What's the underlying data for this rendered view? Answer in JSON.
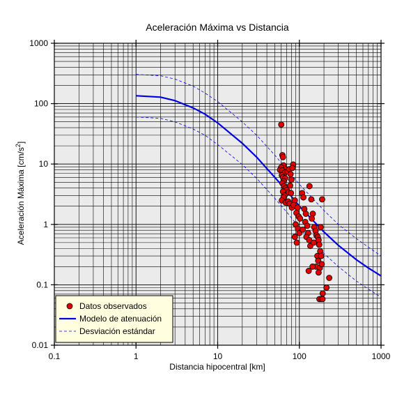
{
  "chart_data": {
    "type": "scatter",
    "title": "Aceleración Máxima vs Distancia",
    "xlabel": "Distancia hipocentral [km]",
    "ylabel": "Aceleración Máxima [cm/s²]",
    "ylabel_main": "Aceleración Máxima [cm/s",
    "ylabel_sup": "2",
    "ylabel_end": "]",
    "xscale": "log",
    "yscale": "log",
    "xlim": [
      0.1,
      1000
    ],
    "ylim": [
      0.01,
      1000
    ],
    "grid": true,
    "background": "#ebebeb",
    "x_ticks": [
      {
        "value": 0.1,
        "label": "0.1"
      },
      {
        "value": 1,
        "label": "1"
      },
      {
        "value": 10,
        "label": "10"
      },
      {
        "value": 100,
        "label": "100"
      },
      {
        "value": 1000,
        "label": "1000"
      }
    ],
    "y_ticks": [
      {
        "value": 0.01,
        "label": "0.01"
      },
      {
        "value": 0.1,
        "label": "0.1"
      },
      {
        "value": 1,
        "label": "1"
      },
      {
        "value": 10,
        "label": "10"
      },
      {
        "value": 100,
        "label": "100"
      },
      {
        "value": 1000,
        "label": "1000"
      }
    ],
    "legend": {
      "placement": "bottom-left",
      "background": "#ffffe0",
      "entries": [
        {
          "label": "Datos observados",
          "marker": "circle",
          "color": "#e00000"
        },
        {
          "label": "Modelo de atenuación",
          "marker": "line",
          "color": "#0000e0"
        },
        {
          "label": "Desviación estándar",
          "marker": "dashed",
          "color": "#0000e0"
        }
      ]
    },
    "series": [
      {
        "name": "Datos observados",
        "kind": "scatter",
        "color": "#e00000",
        "points": [
          [
            60,
            45
          ],
          [
            62,
            14
          ],
          [
            63,
            13
          ],
          [
            64,
            9.5
          ],
          [
            65,
            8.5
          ],
          [
            60,
            8.8
          ],
          [
            58,
            8.0
          ],
          [
            62,
            7.8
          ],
          [
            66,
            7.2
          ],
          [
            61,
            6.5
          ],
          [
            63,
            6.0
          ],
          [
            67,
            5.8
          ],
          [
            64,
            5.2
          ],
          [
            62,
            4.8
          ],
          [
            65,
            4.3
          ],
          [
            68,
            4.0
          ],
          [
            70,
            3.7
          ],
          [
            63,
            3.5
          ],
          [
            66,
            3.0
          ],
          [
            64,
            2.8
          ],
          [
            61,
            2.5
          ],
          [
            68,
            2.3
          ],
          [
            72,
            7.5
          ],
          [
            75,
            8.2
          ],
          [
            78,
            6.8
          ],
          [
            80,
            5.5
          ],
          [
            84,
            9.8
          ],
          [
            82,
            8.6
          ],
          [
            77,
            4.4
          ],
          [
            74,
            3.4
          ],
          [
            79,
            3.3
          ],
          [
            73,
            2.4
          ],
          [
            76,
            2.2
          ],
          [
            81,
            1.9
          ],
          [
            88,
            2.5
          ],
          [
            85,
            2.1
          ],
          [
            95,
            1.9
          ],
          [
            92,
            1.55
          ],
          [
            98,
            1.35
          ],
          [
            102,
            1.25
          ],
          [
            90,
            1.0
          ],
          [
            96,
            0.85
          ],
          [
            100,
            0.72
          ],
          [
            88,
            0.62
          ],
          [
            93,
            0.5
          ],
          [
            108,
            3.3
          ],
          [
            112,
            2.8
          ],
          [
            115,
            1.8
          ],
          [
            120,
            1.5
          ],
          [
            118,
            1.1
          ],
          [
            125,
            0.95
          ],
          [
            110,
            0.82
          ],
          [
            128,
            0.72
          ],
          [
            122,
            0.62
          ],
          [
            132,
            0.55
          ],
          [
            136,
            0.44
          ],
          [
            133,
            4.3
          ],
          [
            140,
            2.6
          ],
          [
            146,
            1.5
          ],
          [
            142,
            1.25
          ],
          [
            152,
            0.9
          ],
          [
            158,
            0.78
          ],
          [
            162,
            0.66
          ],
          [
            168,
            0.62
          ],
          [
            150,
            0.5
          ],
          [
            172,
            0.55
          ],
          [
            175,
            0.46
          ],
          [
            180,
            0.36
          ],
          [
            166,
            0.3
          ],
          [
            185,
            0.3
          ],
          [
            170,
            0.25
          ],
          [
            160,
            0.2
          ],
          [
            178,
            0.19
          ],
          [
            172,
            0.16
          ],
          [
            188,
            0.22
          ],
          [
            145,
            0.2
          ],
          [
            130,
            0.17
          ],
          [
            190,
            2.6
          ],
          [
            182,
            0.9
          ],
          [
            176,
            0.058
          ],
          [
            185,
            0.058
          ],
          [
            192,
            0.058
          ],
          [
            215,
            0.09
          ],
          [
            232,
            0.13
          ],
          [
            193,
            0.072
          ]
        ]
      },
      {
        "name": "Modelo de atenuación",
        "kind": "line",
        "color": "#0000e0",
        "points": [
          [
            1,
            135
          ],
          [
            2,
            128
          ],
          [
            3,
            112
          ],
          [
            5,
            85
          ],
          [
            7,
            67
          ],
          [
            10,
            48
          ],
          [
            20,
            22
          ],
          [
            30,
            13
          ],
          [
            50,
            6.0
          ],
          [
            70,
            3.6
          ],
          [
            100,
            2.0
          ],
          [
            200,
            0.75
          ],
          [
            300,
            0.45
          ],
          [
            500,
            0.26
          ],
          [
            700,
            0.19
          ],
          [
            1000,
            0.14
          ]
        ]
      },
      {
        "name": "Desviación estándar (superior)",
        "kind": "dashed",
        "color": "#0000e0",
        "points": [
          [
            1,
            305
          ],
          [
            2,
            290
          ],
          [
            3,
            255
          ],
          [
            5,
            195
          ],
          [
            7,
            150
          ],
          [
            10,
            108
          ],
          [
            20,
            50
          ],
          [
            30,
            30
          ],
          [
            50,
            14
          ],
          [
            70,
            8.2
          ],
          [
            100,
            4.6
          ],
          [
            200,
            1.7
          ],
          [
            300,
            1.0
          ],
          [
            500,
            0.58
          ],
          [
            700,
            0.42
          ],
          [
            1000,
            0.3
          ]
        ]
      },
      {
        "name": "Desviación estándar (inferior)",
        "kind": "dashed",
        "color": "#0000e0",
        "points": [
          [
            1,
            60
          ],
          [
            2,
            57
          ],
          [
            3,
            50
          ],
          [
            5,
            38
          ],
          [
            7,
            30
          ],
          [
            10,
            21
          ],
          [
            20,
            9.8
          ],
          [
            30,
            5.8
          ],
          [
            50,
            2.7
          ],
          [
            70,
            1.6
          ],
          [
            100,
            0.88
          ],
          [
            200,
            0.33
          ],
          [
            300,
            0.2
          ],
          [
            500,
            0.115
          ],
          [
            700,
            0.085
          ],
          [
            1000,
            0.062
          ]
        ]
      }
    ]
  }
}
